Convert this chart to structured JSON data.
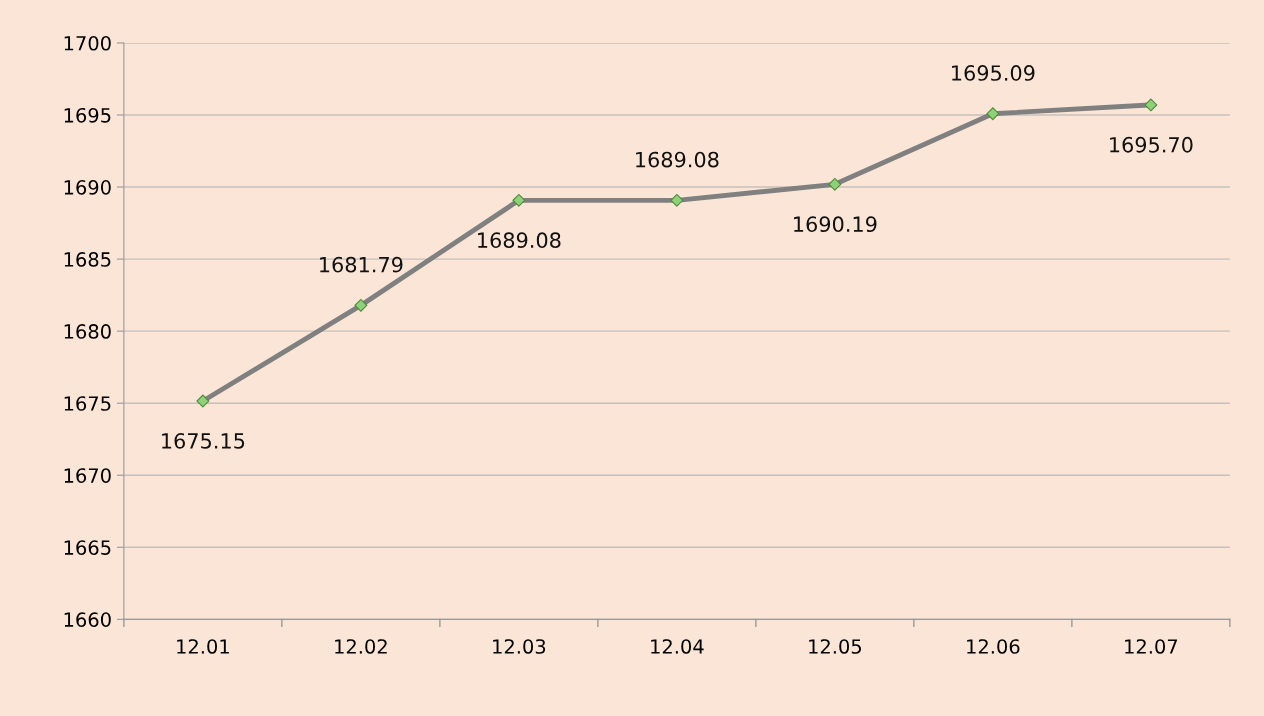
{
  "chart_data": {
    "type": "line",
    "categories": [
      "12.01",
      "12.02",
      "12.03",
      "12.04",
      "12.05",
      "12.06",
      "12.07"
    ],
    "series": [
      {
        "color": "#808080",
        "values": [
          1675.15,
          1681.79,
          1689.08,
          1689.08,
          1690.19,
          1695.09,
          1695.7
        ]
      }
    ],
    "value_labels": [
      "1675.15",
      "1681.79",
      "1689.08",
      "1689.08",
      "1690.19",
      "1695.09",
      "1695.70"
    ],
    "ylim": [
      1660,
      1700
    ],
    "yticks": [
      1660,
      1665,
      1670,
      1675,
      1680,
      1685,
      1690,
      1695,
      1700
    ],
    "grid": "y",
    "marker": "diamond",
    "line_style": "solid",
    "legend": false
  }
}
